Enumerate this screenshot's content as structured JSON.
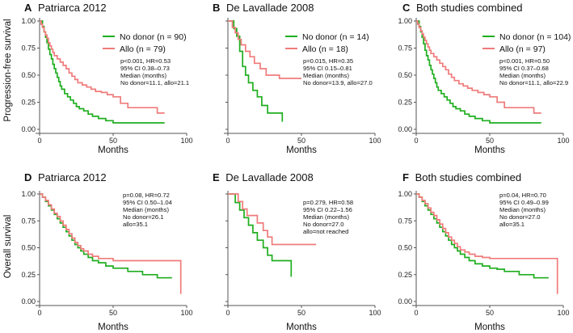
{
  "colors": {
    "no_donor": "#1fae1f",
    "allo": "#f07b7b",
    "axis": "#555555"
  },
  "chart_data": [
    {
      "type": "line",
      "subtype": "kaplan-meier",
      "label": "A",
      "title": "Patriarca 2012",
      "xlabel": "Months",
      "ylabel": "Progression-free survival",
      "xlim": [
        0,
        100
      ],
      "ylim": [
        0,
        1
      ],
      "x_ticks": [
        "0",
        "50",
        "100"
      ],
      "y_ticks": [
        "0.00",
        "0.25",
        "0.50",
        "0.75",
        "1.00"
      ],
      "legend": [
        "No donor (n = 90)",
        "Allo (n = 79)"
      ],
      "annotations": [
        "p<0.001, HR=0.53",
        "95% CI 0.38–0.73",
        "Median (months)",
        "No donor=11.1, allo=21.1"
      ],
      "series": [
        {
          "name": "No donor",
          "color": "#1fae1f",
          "x": [
            0,
            2,
            3,
            4,
            5,
            6,
            7,
            8,
            9,
            10,
            11,
            12,
            13,
            14,
            15,
            17,
            19,
            21,
            23,
            25,
            27,
            30,
            33,
            36,
            40,
            45,
            50,
            60,
            70,
            85
          ],
          "y": [
            1.0,
            0.95,
            0.9,
            0.85,
            0.8,
            0.74,
            0.69,
            0.65,
            0.6,
            0.56,
            0.52,
            0.48,
            0.44,
            0.4,
            0.37,
            0.33,
            0.3,
            0.27,
            0.24,
            0.21,
            0.19,
            0.17,
            0.14,
            0.12,
            0.1,
            0.08,
            0.06,
            0.06,
            0.06,
            0.06
          ]
        },
        {
          "name": "Allo",
          "color": "#f07b7b",
          "x": [
            0,
            1,
            2,
            3,
            4,
            5,
            6,
            7,
            8,
            9,
            10,
            12,
            14,
            16,
            18,
            20,
            22,
            24,
            26,
            29,
            32,
            35,
            38,
            42,
            46,
            50,
            55,
            60,
            70,
            78,
            80,
            85
          ],
          "y": [
            1.0,
            0.97,
            0.94,
            0.9,
            0.87,
            0.84,
            0.8,
            0.77,
            0.74,
            0.71,
            0.68,
            0.65,
            0.62,
            0.59,
            0.56,
            0.52,
            0.49,
            0.46,
            0.43,
            0.41,
            0.39,
            0.37,
            0.35,
            0.34,
            0.32,
            0.3,
            0.24,
            0.2,
            0.2,
            0.2,
            0.15,
            0.15
          ]
        }
      ]
    },
    {
      "type": "line",
      "subtype": "kaplan-meier",
      "label": "B",
      "title": "De Lavallade 2008",
      "xlabel": "Months",
      "ylabel": "",
      "xlim": [
        0,
        100
      ],
      "ylim": [
        0,
        1
      ],
      "x_ticks": [
        "0",
        "50",
        "100"
      ],
      "y_ticks": [],
      "legend": [
        "No donor (n = 14)",
        "Allo (n = 18)"
      ],
      "annotations": [
        "p=0.015, HR=0.35",
        "95% CI 0.15–0.81",
        "Median (months)",
        "No donor=13.9, allo=27.0"
      ],
      "series": [
        {
          "name": "No donor",
          "color": "#1fae1f",
          "x": [
            0,
            4,
            6,
            8,
            10,
            12,
            14,
            17,
            20,
            23,
            27,
            30,
            34,
            37
          ],
          "y": [
            1.0,
            0.93,
            0.86,
            0.72,
            0.58,
            0.5,
            0.43,
            0.36,
            0.3,
            0.22,
            0.15,
            0.15,
            0.15,
            0.07
          ]
        },
        {
          "name": "Allo",
          "color": "#f07b7b",
          "x": [
            0,
            3,
            5,
            7,
            9,
            12,
            15,
            18,
            22,
            26,
            30,
            35,
            40,
            45,
            50
          ],
          "y": [
            1.0,
            0.94,
            0.89,
            0.83,
            0.78,
            0.72,
            0.67,
            0.61,
            0.56,
            0.5,
            0.5,
            0.47,
            0.47,
            0.47,
            0.47
          ]
        }
      ]
    },
    {
      "type": "line",
      "subtype": "kaplan-meier",
      "label": "C",
      "title": "Both studies combined",
      "xlabel": "Months",
      "ylabel": "",
      "xlim": [
        0,
        100
      ],
      "ylim": [
        0,
        1
      ],
      "x_ticks": [
        "0",
        "50",
        "100"
      ],
      "y_ticks": [
        "0.00",
        "0.25",
        "0.50",
        "0.75",
        "1.00"
      ],
      "legend": [
        "No donor (n = 104)",
        "Allo (n = 97)"
      ],
      "annotations": [
        "p<0.001, HR=0.50",
        "95% CI 0.37–0.68",
        "Median (months)",
        "No donor=11.1, allo=22.9"
      ],
      "series": [
        {
          "name": "No donor",
          "color": "#1fae1f",
          "x": [
            0,
            2,
            3,
            4,
            5,
            6,
            7,
            8,
            9,
            10,
            11,
            12,
            13,
            14,
            15,
            17,
            19,
            21,
            23,
            25,
            27,
            30,
            33,
            36,
            40,
            45,
            50,
            60,
            70,
            85
          ],
          "y": [
            1.0,
            0.95,
            0.9,
            0.85,
            0.79,
            0.73,
            0.68,
            0.64,
            0.59,
            0.55,
            0.51,
            0.47,
            0.43,
            0.39,
            0.36,
            0.33,
            0.3,
            0.27,
            0.24,
            0.21,
            0.19,
            0.17,
            0.14,
            0.12,
            0.1,
            0.08,
            0.06,
            0.06,
            0.06,
            0.06
          ]
        },
        {
          "name": "Allo",
          "color": "#f07b7b",
          "x": [
            0,
            1,
            2,
            3,
            4,
            5,
            6,
            7,
            8,
            9,
            10,
            12,
            14,
            16,
            18,
            20,
            22,
            24,
            26,
            29,
            32,
            35,
            38,
            42,
            46,
            50,
            55,
            60,
            70,
            78,
            80,
            85
          ],
          "y": [
            1.0,
            0.97,
            0.94,
            0.91,
            0.88,
            0.85,
            0.82,
            0.79,
            0.76,
            0.73,
            0.7,
            0.67,
            0.64,
            0.61,
            0.58,
            0.55,
            0.51,
            0.48,
            0.45,
            0.42,
            0.4,
            0.38,
            0.36,
            0.34,
            0.32,
            0.3,
            0.25,
            0.2,
            0.2,
            0.2,
            0.15,
            0.15
          ]
        }
      ]
    },
    {
      "type": "line",
      "subtype": "kaplan-meier",
      "label": "D",
      "title": "Patriarca 2012",
      "xlabel": "Months",
      "ylabel": "Overall survival",
      "xlim": [
        0,
        100
      ],
      "ylim": [
        0,
        1
      ],
      "x_ticks": [
        "0",
        "50",
        "100"
      ],
      "y_ticks": [
        "0.00",
        "0.25",
        "0.50",
        "0.75",
        "1.00"
      ],
      "legend": [],
      "annotations": [
        "p=0.08, HR=0.72",
        "95% CI 0.50–1.04",
        "Median (months)",
        "No donor=26.1",
        "allo=35.1"
      ],
      "series": [
        {
          "name": "No donor",
          "color": "#1fae1f",
          "x": [
            0,
            2,
            4,
            6,
            8,
            10,
            12,
            14,
            16,
            18,
            20,
            22,
            24,
            26,
            28,
            30,
            33,
            36,
            40,
            45,
            50,
            55,
            60,
            70,
            80,
            90
          ],
          "y": [
            1.0,
            0.97,
            0.93,
            0.89,
            0.85,
            0.81,
            0.77,
            0.73,
            0.69,
            0.65,
            0.61,
            0.57,
            0.53,
            0.5,
            0.47,
            0.44,
            0.41,
            0.38,
            0.36,
            0.33,
            0.31,
            0.31,
            0.28,
            0.25,
            0.22,
            0.22
          ]
        },
        {
          "name": "Allo",
          "color": "#f07b7b",
          "x": [
            0,
            2,
            4,
            6,
            8,
            10,
            12,
            14,
            16,
            18,
            20,
            22,
            24,
            26,
            28,
            30,
            33,
            36,
            40,
            45,
            50,
            55,
            60,
            70,
            80,
            90,
            96
          ],
          "y": [
            1.0,
            0.97,
            0.94,
            0.9,
            0.86,
            0.82,
            0.79,
            0.75,
            0.71,
            0.67,
            0.63,
            0.59,
            0.55,
            0.52,
            0.49,
            0.47,
            0.44,
            0.42,
            0.4,
            0.4,
            0.38,
            0.38,
            0.38,
            0.38,
            0.38,
            0.38,
            0.07
          ]
        }
      ]
    },
    {
      "type": "line",
      "subtype": "kaplan-meier",
      "label": "E",
      "title": "De Lavallade 2008",
      "xlabel": "Months",
      "ylabel": "",
      "xlim": [
        0,
        100
      ],
      "ylim": [
        0,
        1
      ],
      "x_ticks": [
        "0",
        "50",
        "100"
      ],
      "y_ticks": [],
      "legend": [],
      "annotations": [
        "p=0.279, HR=0.58",
        "95% CI 0.22–1.56",
        "Median (months)",
        "No donor=27.0",
        "allo=not reached"
      ],
      "series": [
        {
          "name": "No donor",
          "color": "#1fae1f",
          "x": [
            0,
            5,
            8,
            11,
            14,
            17,
            20,
            24,
            27,
            30,
            35,
            40,
            43
          ],
          "y": [
            1.0,
            0.92,
            0.85,
            0.78,
            0.71,
            0.64,
            0.57,
            0.5,
            0.43,
            0.38,
            0.38,
            0.38,
            0.23
          ]
        },
        {
          "name": "Allo",
          "color": "#f07b7b",
          "x": [
            0,
            4,
            7,
            10,
            13,
            16,
            20,
            24,
            27,
            30,
            35,
            40,
            50,
            60
          ],
          "y": [
            1.0,
            1.0,
            0.93,
            0.86,
            0.8,
            0.8,
            0.73,
            0.66,
            0.6,
            0.53,
            0.53,
            0.53,
            0.53,
            0.53
          ]
        }
      ]
    },
    {
      "type": "line",
      "subtype": "kaplan-meier",
      "label": "F",
      "title": "Both studies combined",
      "xlabel": "Months",
      "ylabel": "",
      "xlim": [
        0,
        100
      ],
      "ylim": [
        0,
        1
      ],
      "x_ticks": [
        "0",
        "50",
        "100"
      ],
      "y_ticks": [
        "0.00",
        "0.25",
        "0.50",
        "0.75",
        "1.00"
      ],
      "legend": [],
      "annotations": [
        "p=0.04, HR=0.70",
        "95% CI 0.49–0.99",
        "Median (months)",
        "No donor=27.0",
        "allo=35.1"
      ],
      "series": [
        {
          "name": "No donor",
          "color": "#1fae1f",
          "x": [
            0,
            2,
            4,
            6,
            8,
            10,
            12,
            14,
            16,
            18,
            20,
            22,
            24,
            26,
            28,
            30,
            33,
            36,
            40,
            45,
            50,
            55,
            60,
            70,
            80,
            90
          ],
          "y": [
            1.0,
            0.97,
            0.93,
            0.89,
            0.85,
            0.81,
            0.77,
            0.73,
            0.69,
            0.65,
            0.61,
            0.57,
            0.53,
            0.5,
            0.47,
            0.44,
            0.41,
            0.38,
            0.35,
            0.33,
            0.31,
            0.3,
            0.28,
            0.25,
            0.22,
            0.22
          ]
        },
        {
          "name": "Allo",
          "color": "#f07b7b",
          "x": [
            0,
            2,
            4,
            6,
            8,
            10,
            12,
            14,
            16,
            18,
            20,
            22,
            24,
            26,
            28,
            30,
            33,
            36,
            40,
            45,
            50,
            55,
            60,
            70,
            80,
            90,
            96
          ],
          "y": [
            1.0,
            0.97,
            0.94,
            0.91,
            0.87,
            0.83,
            0.8,
            0.76,
            0.72,
            0.68,
            0.64,
            0.6,
            0.57,
            0.54,
            0.51,
            0.48,
            0.46,
            0.44,
            0.42,
            0.41,
            0.4,
            0.4,
            0.4,
            0.4,
            0.4,
            0.4,
            0.07
          ]
        }
      ]
    }
  ]
}
